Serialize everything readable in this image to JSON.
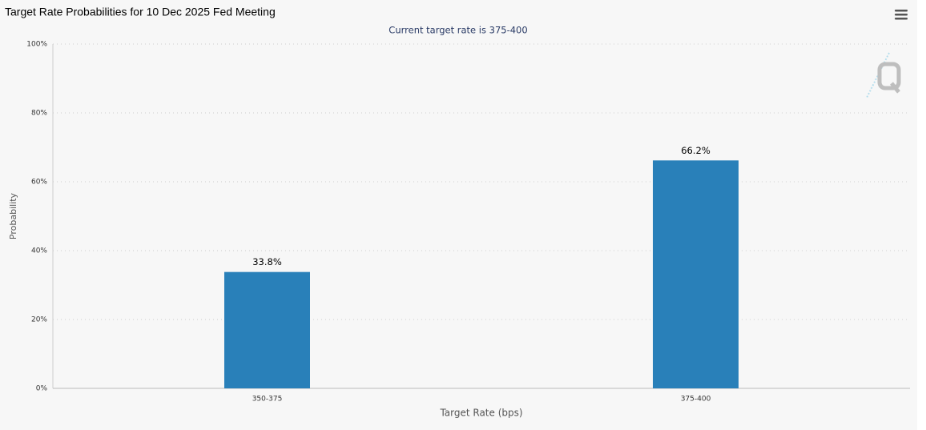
{
  "chart_data": {
    "type": "bar",
    "title": "Target Rate Probabilities for 10 Dec 2025 Fed Meeting",
    "subtitle": "Current target rate is 375-400",
    "x_label": "Target Rate (bps)",
    "y_label": "Probability",
    "categories": [
      "350-375",
      "375-400"
    ],
    "values": [
      33.8,
      66.2
    ],
    "value_labels": [
      "33.8%",
      "66.2%"
    ],
    "color": "#2980b9",
    "ylim": [
      0,
      100
    ],
    "yticks": [
      {
        "value": 0,
        "label": "0%"
      },
      {
        "value": 20,
        "label": "20%"
      },
      {
        "value": 40,
        "label": "40%"
      },
      {
        "value": 60,
        "label": "60%"
      },
      {
        "value": 80,
        "label": "80%"
      },
      {
        "value": 100,
        "label": "100%"
      }
    ],
    "grid": true
  }
}
